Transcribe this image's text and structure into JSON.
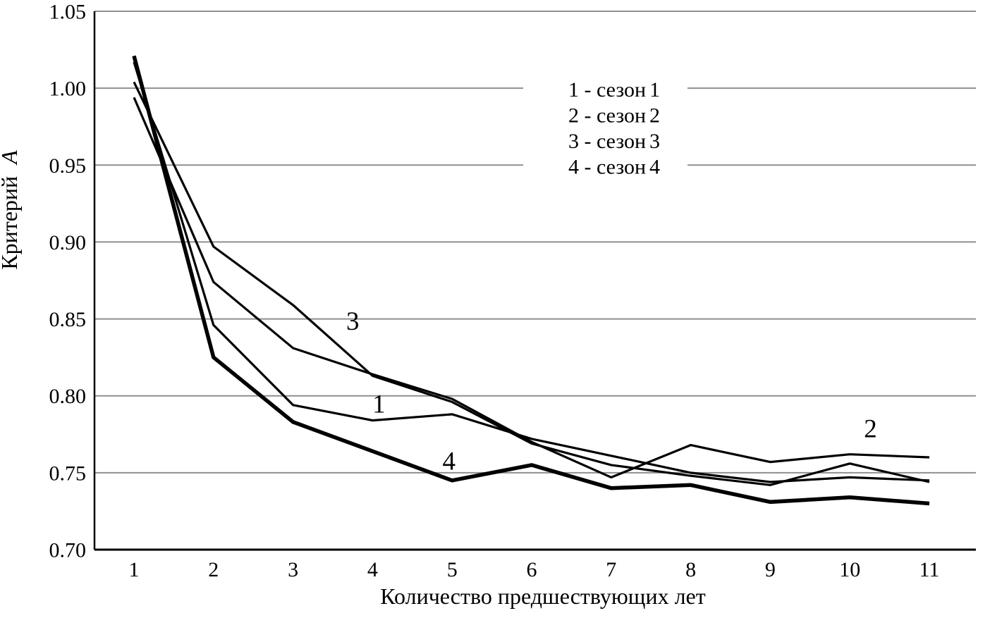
{
  "page": {
    "background": "#ffffff"
  },
  "chart_data": {
    "type": "line",
    "title": "",
    "x_axis": {
      "label": "Количество предшествующих лет",
      "ticks": [
        1,
        2,
        3,
        4,
        5,
        6,
        7,
        8,
        9,
        10,
        11
      ],
      "min": 1,
      "max": 11
    },
    "y_axis": {
      "label_prefix": "Критерий",
      "label_symbol": "A",
      "min": 0.7,
      "max": 1.05,
      "step": 0.05,
      "ticks": [
        {
          "v": 1.05,
          "t": "1.05"
        },
        {
          "v": 1.0,
          "t": "1.00"
        },
        {
          "v": 0.95,
          "t": "0.95"
        },
        {
          "v": 0.9,
          "t": "0.90"
        },
        {
          "v": 0.85,
          "t": "0.85"
        },
        {
          "v": 0.8,
          "t": "0.80"
        },
        {
          "v": 0.75,
          "t": "0.75"
        },
        {
          "v": 0.7,
          "t": "0.70"
        }
      ]
    },
    "grid": true,
    "legend_position": "top-center-inside",
    "categories": [
      1,
      2,
      3,
      4,
      5,
      6,
      7,
      8,
      9,
      10,
      11
    ],
    "series": [
      {
        "name": "сезон 1",
        "label": "1",
        "weight": "thin",
        "values": [
          1.017,
          0.846,
          0.794,
          0.784,
          0.788,
          0.772,
          0.761,
          0.75,
          0.744,
          0.747,
          0.745
        ]
      },
      {
        "name": "сезон 2",
        "label": "2",
        "weight": "thin",
        "values": [
          0.994,
          0.874,
          0.831,
          0.814,
          0.798,
          0.77,
          0.747,
          0.768,
          0.757,
          0.762,
          0.76
        ]
      },
      {
        "name": "сезон 3",
        "label": "3",
        "weight": "thin",
        "values": [
          1.004,
          0.897,
          0.859,
          0.813,
          0.796,
          0.769,
          0.755,
          0.748,
          0.742,
          0.756,
          0.744
        ]
      },
      {
        "name": "сезон 4",
        "label": "4",
        "weight": "thick",
        "values": [
          1.021,
          0.825,
          0.783,
          0.764,
          0.745,
          0.755,
          0.74,
          0.742,
          0.731,
          0.734,
          0.73
        ]
      }
    ],
    "legend": [
      {
        "text": "1 - сезон",
        "value": "1"
      },
      {
        "text": "2 - сезон",
        "value": "2"
      },
      {
        "text": "3 - сезон",
        "value": "3"
      },
      {
        "text": "4 - сезон",
        "value": "4"
      }
    ],
    "annotations": [
      {
        "text": "3",
        "x": 3.75,
        "y": 0.849
      },
      {
        "text": "1",
        "x": 4.08,
        "y": 0.795
      },
      {
        "text": "4",
        "x": 4.96,
        "y": 0.758
      },
      {
        "text": "2",
        "x": 10.26,
        "y": 0.779
      }
    ],
    "colors": {
      "line": "#000000",
      "grid": "#8f8f8f",
      "axis": "#000000",
      "background": "#ffffff"
    }
  }
}
